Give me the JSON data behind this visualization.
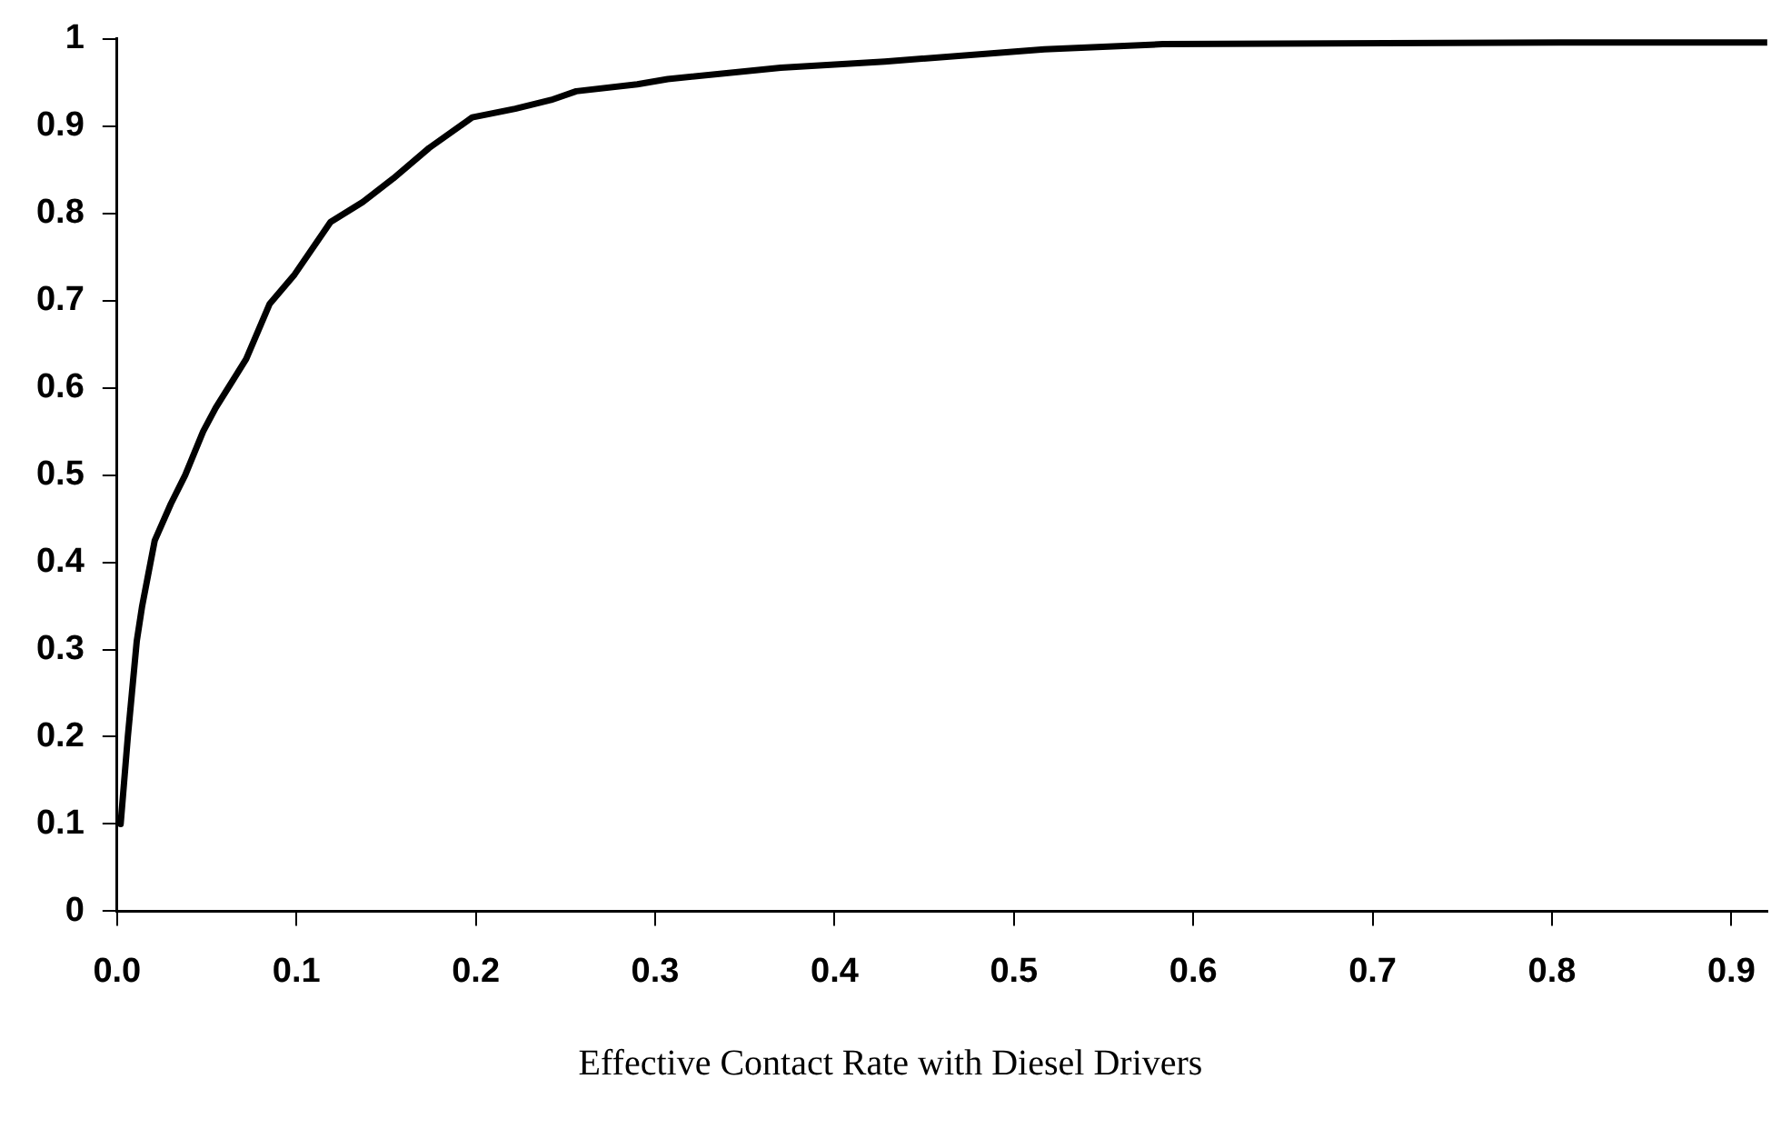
{
  "chart_data": {
    "type": "line",
    "xlabel": "Effective Contact Rate with Diesel Drivers",
    "x": [
      0.002,
      0.006,
      0.011,
      0.014,
      0.021,
      0.03,
      0.038,
      0.048,
      0.055,
      0.072,
      0.085,
      0.099,
      0.119,
      0.137,
      0.154,
      0.174,
      0.198,
      0.222,
      0.242,
      0.256,
      0.29,
      0.307,
      0.37,
      0.428,
      0.517,
      0.583,
      0.805,
      0.92
    ],
    "series": [
      {
        "color": "#000000",
        "values": [
          0.1,
          0.2,
          0.31,
          0.35,
          0.425,
          0.467,
          0.5,
          0.55,
          0.577,
          0.633,
          0.696,
          0.73,
          0.79,
          0.813,
          0.84,
          0.875,
          0.91,
          0.92,
          0.93,
          0.94,
          0.948,
          0.954,
          0.967,
          0.974,
          0.988,
          0.994,
          0.996,
          0.996
        ]
      }
    ],
    "xlim": [
      0,
      0.92
    ],
    "xticks": [
      {
        "value": 0,
        "label": "0.0"
      },
      0.1,
      0.2,
      0.3,
      0.4,
      0.5,
      0.6,
      0.7,
      0.8,
      0.9
    ],
    "ylim": [
      0,
      1
    ],
    "yticks": [
      0,
      0.1,
      0.2,
      0.3,
      0.4,
      0.5,
      0.6,
      0.7,
      0.8,
      0.9,
      1
    ],
    "grid": false,
    "legend": false,
    "marker": "none",
    "line_style": "solid"
  }
}
